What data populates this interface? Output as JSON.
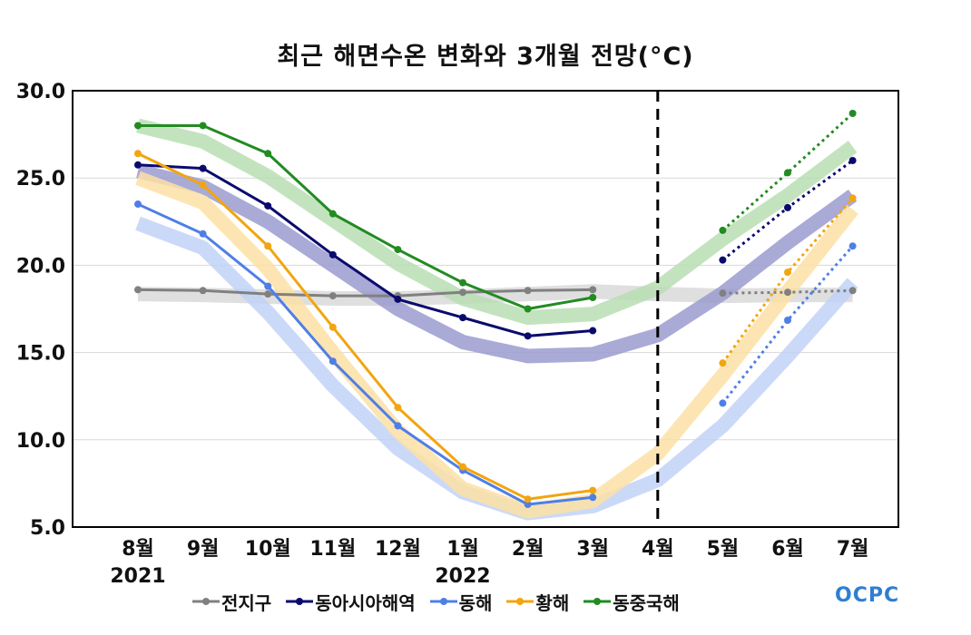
{
  "chart_data": {
    "type": "line",
    "title": "최근 해면수온 변화와 3개월 전망(°C)",
    "categories": [
      "8월",
      "9월",
      "10월",
      "11월",
      "12월",
      "1월",
      "2월",
      "3월",
      "4월",
      "5월",
      "6월",
      "7월"
    ],
    "year_labels": [
      {
        "category": "8월",
        "label": "2021"
      },
      {
        "category": "1월",
        "label": "2022"
      }
    ],
    "ylim": [
      5.0,
      30.0
    ],
    "y_ticks": [
      "5.0",
      "10.0",
      "15.0",
      "20.0",
      "25.0",
      "30.0"
    ],
    "grid": true,
    "divider_after_category": "4월",
    "series": [
      {
        "name": "전지구",
        "color": "#808080",
        "band_color": "#d9d9d9",
        "observed": [
          18.6,
          18.55,
          18.35,
          18.25,
          18.25,
          18.45,
          18.55,
          18.6,
          null,
          null,
          null,
          null
        ],
        "forecast": [
          null,
          null,
          null,
          null,
          null,
          null,
          null,
          null,
          null,
          18.4,
          18.45,
          18.55
        ],
        "normal": [
          18.35,
          18.3,
          18.2,
          18.1,
          18.1,
          18.2,
          18.35,
          18.5,
          18.35,
          18.25,
          18.3,
          18.3
        ]
      },
      {
        "name": "동아시아해역",
        "color": "#0a0a6e",
        "band_color": "#9b9bd0",
        "observed": [
          25.75,
          25.55,
          23.4,
          20.6,
          18.05,
          17.0,
          15.95,
          16.25,
          null,
          null,
          null,
          null
        ],
        "forecast": [
          null,
          null,
          null,
          null,
          null,
          null,
          null,
          null,
          null,
          20.3,
          23.3,
          26.0
        ],
        "normal": [
          25.4,
          24.5,
          22.5,
          20.0,
          17.5,
          15.6,
          14.8,
          14.9,
          16.0,
          18.4,
          21.3,
          24.0
        ]
      },
      {
        "name": "동해",
        "color": "#4f7fe6",
        "band_color": "#c2d2f8",
        "observed": [
          23.5,
          21.8,
          18.8,
          14.5,
          10.8,
          8.25,
          6.3,
          6.7,
          null,
          null,
          null,
          null
        ],
        "forecast": [
          null,
          null,
          null,
          null,
          null,
          null,
          null,
          null,
          null,
          12.1,
          16.85,
          21.1
        ],
        "normal": [
          22.4,
          21.0,
          17.3,
          13.1,
          9.5,
          7.0,
          5.8,
          6.2,
          7.7,
          10.8,
          14.8,
          19.0
        ]
      },
      {
        "name": "황해",
        "color": "#f2a510",
        "band_color": "#fde0a6",
        "observed": [
          26.4,
          24.6,
          21.1,
          16.45,
          11.85,
          8.45,
          6.6,
          7.1,
          null,
          null,
          null,
          null
        ],
        "forecast": [
          null,
          null,
          null,
          null,
          null,
          null,
          null,
          null,
          null,
          14.4,
          19.6,
          23.85
        ],
        "normal": [
          25.0,
          23.6,
          19.8,
          15.0,
          10.5,
          7.2,
          5.9,
          6.5,
          9.2,
          13.7,
          18.5,
          23.2
        ]
      },
      {
        "name": "동중국해",
        "color": "#228b22",
        "band_color": "#b8deb4",
        "observed": [
          28.0,
          28.0,
          26.4,
          22.95,
          20.9,
          19.0,
          17.5,
          18.15,
          null,
          null,
          null,
          null
        ],
        "forecast": [
          null,
          null,
          null,
          null,
          null,
          null,
          null,
          null,
          null,
          22.0,
          25.3,
          28.7
        ],
        "normal": [
          28.0,
          27.1,
          25.1,
          22.6,
          20.1,
          18.1,
          17.0,
          17.2,
          18.7,
          21.5,
          24.0,
          26.8
        ]
      }
    ]
  },
  "logo": {
    "text": "OCPC"
  }
}
